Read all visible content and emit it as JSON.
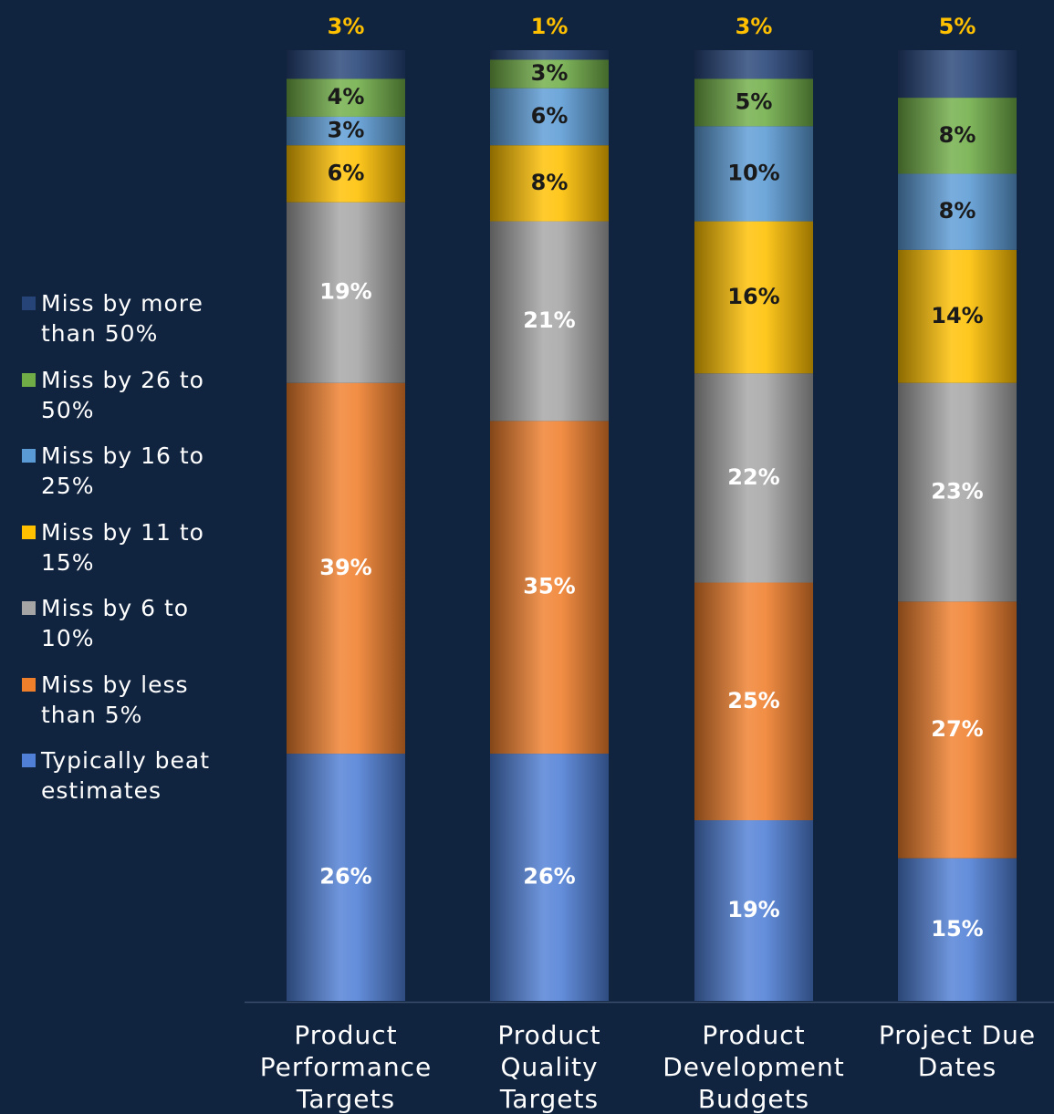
{
  "chart_data": {
    "type": "bar",
    "stacked": true,
    "categories": [
      [
        "Product",
        "Performance",
        "Targets"
      ],
      [
        "Product",
        "Quality",
        "Targets"
      ],
      [
        "Product",
        "Development",
        "Budgets"
      ],
      [
        "Project Due",
        "Dates"
      ]
    ],
    "series": [
      {
        "name": "Typically beat estimates",
        "color": "#4f7fd6",
        "text_color": "#ffffff",
        "values": [
          26,
          26,
          19,
          15
        ],
        "labels": [
          "26%",
          "26%",
          "19%",
          "15%"
        ]
      },
      {
        "name": "Miss by less than 5%",
        "color": "#f07f2c",
        "text_color": "#ffffff",
        "values": [
          39,
          35,
          25,
          27
        ],
        "labels": [
          "39%",
          "35%",
          "25%",
          "27%"
        ]
      },
      {
        "name": "Miss by 6 to 10%",
        "color": "#a5a5a5",
        "text_color": "#ffffff",
        "values": [
          19,
          21,
          22,
          23
        ],
        "labels": [
          "19%",
          "21%",
          "22%",
          "23%"
        ]
      },
      {
        "name": "Miss by 11 to 15%",
        "color": "#ffc000",
        "text_color": "#1a1a1a",
        "values": [
          6,
          8,
          16,
          14
        ],
        "labels": [
          "6%",
          "8%",
          "16%",
          "14%"
        ]
      },
      {
        "name": "Miss by 16 to 25%",
        "color": "#5b9bd5",
        "text_color": "#1a1a1a",
        "values": [
          3,
          6,
          10,
          8
        ],
        "labels": [
          "3%",
          "6%",
          "10%",
          "8%"
        ]
      },
      {
        "name": "Miss by 26 to 50%",
        "color": "#70ad47",
        "text_color": "#1a1a1a",
        "values": [
          4,
          3,
          5,
          8
        ],
        "labels": [
          "4%",
          "3%",
          "5%",
          "8%"
        ]
      },
      {
        "name": "Miss by more than 50%",
        "color": "#264478",
        "text_color": "#ffc000",
        "values": [
          3,
          1,
          3,
          5
        ],
        "labels": [
          "3%",
          "1%",
          "3%",
          "5%"
        ],
        "label_position": "above"
      }
    ],
    "ylim": [
      0,
      100
    ],
    "legend": {
      "position": "left",
      "order": [
        "Miss by more than 50%",
        "Miss by 26 to 50%",
        "Miss by 16 to 25%",
        "Miss by 11 to 15%",
        "Miss by 6 to 10%",
        "Miss by less than 5%",
        "Typically beat estimates"
      ],
      "lines": [
        [
          "Miss by more",
          "than 50%"
        ],
        [
          "Miss by 26 to",
          "50%"
        ],
        [
          "Miss by 16 to",
          "25%"
        ],
        [
          "Miss by 11 to",
          "15%"
        ],
        [
          "Miss by 6 to",
          "10%"
        ],
        [
          "Miss by less",
          "than 5%"
        ],
        [
          "Typically beat",
          "estimates"
        ]
      ]
    },
    "grid": false,
    "background": "#10233f"
  }
}
